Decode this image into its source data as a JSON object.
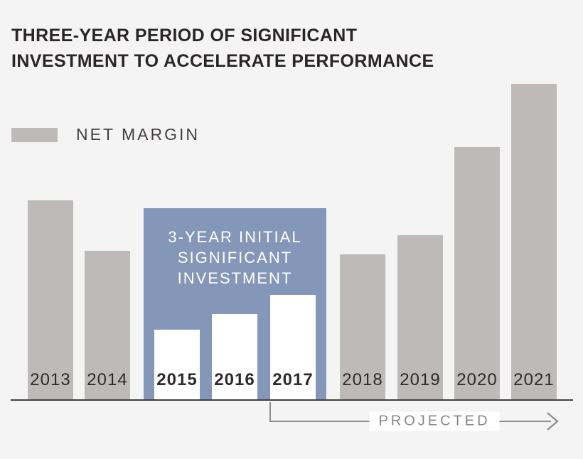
{
  "title": {
    "line1": "THREE-YEAR PERIOD OF SIGNIFICANT",
    "line2": "INVESTMENT TO ACCELERATE PERFORMANCE"
  },
  "legend": {
    "label": "NET MARGIN",
    "swatch_color": "#bebab9"
  },
  "annotation_box": {
    "lines": [
      "3-YEAR INITIAL",
      "SIGNIFICANT",
      "INVESTMENT"
    ],
    "color": "#8497b8"
  },
  "projected": {
    "label": "PROJECTED"
  },
  "colors": {
    "background": "#f5f4f4",
    "bar_gray": "#bebab9",
    "bar_highlight": "#ffffff",
    "annotation_blue": "#8497b8",
    "axis_line": "#44403e",
    "arrow_gray": "#908c8c",
    "title_text": "#2b2626",
    "year_text": "#2e2a2a"
  },
  "chart_data": {
    "type": "bar",
    "title": "THREE-YEAR PERIOD OF SIGNIFICANT INVESTMENT TO ACCELERATE PERFORMANCE",
    "series_name": "NET MARGIN",
    "categories": [
      "2013",
      "2014",
      "2015",
      "2016",
      "2017",
      "2018",
      "2019",
      "2020",
      "2021"
    ],
    "values": [
      63,
      47,
      22,
      27,
      33,
      46,
      52,
      80,
      100
    ],
    "units": "relative bar-height index (no numeric axis shown; 2021 bar = 100)",
    "xlabel": "",
    "ylabel": "",
    "ylim": [
      0,
      100
    ],
    "grid": false,
    "legend_position": "top-left",
    "highlight_years": [
      "2015",
      "2016",
      "2017"
    ],
    "annotation": "3-YEAR INITIAL SIGNIFICANT INVESTMENT",
    "projected_span": {
      "from": "2017",
      "to": "2021",
      "label": "PROJECTED"
    }
  }
}
